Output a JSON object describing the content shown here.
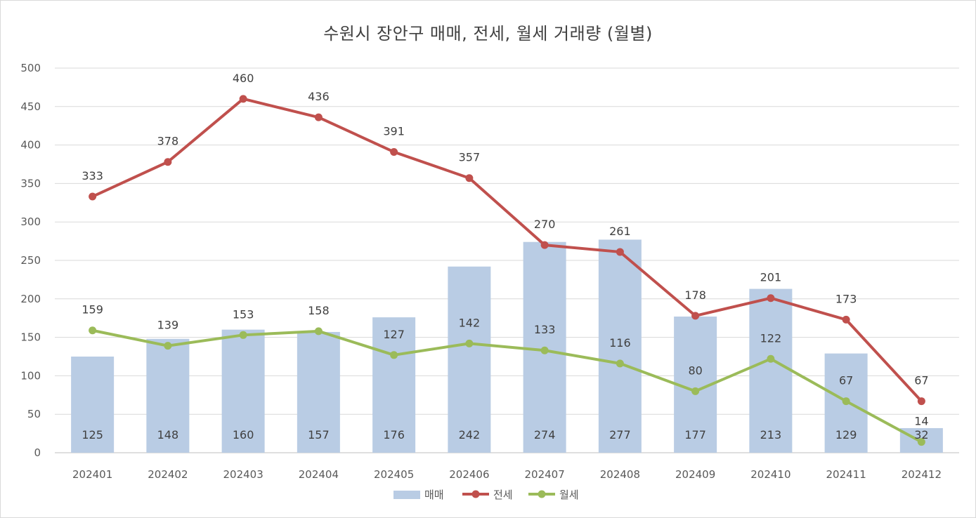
{
  "chart_data": {
    "type": "bar",
    "title": "수원시 장안구 매매, 전세, 월세 거래량 (월별)",
    "categories": [
      "202401",
      "202402",
      "202403",
      "202404",
      "202405",
      "202406",
      "202407",
      "202408",
      "202409",
      "202410",
      "202411",
      "202412"
    ],
    "ylim": [
      0,
      500
    ],
    "yticks": [
      0,
      50,
      100,
      150,
      200,
      250,
      300,
      350,
      400,
      450,
      500
    ],
    "grid": true,
    "legend_position": "bottom",
    "series": [
      {
        "name": "매매",
        "type": "bar",
        "color": "#b9cce4",
        "values": [
          125,
          148,
          160,
          157,
          176,
          242,
          274,
          277,
          177,
          213,
          129,
          32
        ]
      },
      {
        "name": "전세",
        "type": "line",
        "color": "#c0504d",
        "values": [
          333,
          378,
          460,
          436,
          391,
          357,
          270,
          261,
          178,
          201,
          173,
          67
        ]
      },
      {
        "name": "월세",
        "type": "line",
        "color": "#9bbb59",
        "values": [
          159,
          139,
          153,
          158,
          127,
          142,
          133,
          116,
          80,
          122,
          67,
          14
        ]
      }
    ]
  }
}
